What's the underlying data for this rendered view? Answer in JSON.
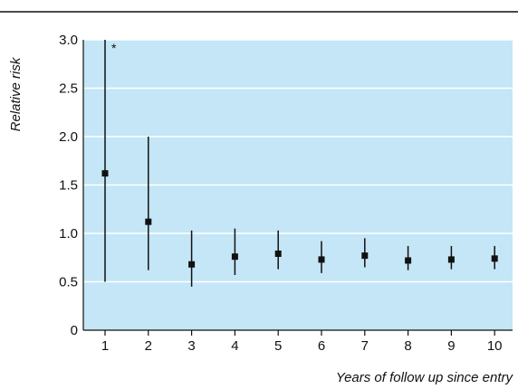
{
  "chart_data": {
    "type": "scatter",
    "xlabel": "Years of follow up since entry",
    "ylabel": "Relative risk",
    "ylim": [
      0,
      3.0
    ],
    "y_ticks": [
      "0",
      "0.5",
      "1.0",
      "1.5",
      "2.0",
      "2.5",
      "3.0"
    ],
    "categories": [
      "1",
      "2",
      "3",
      "4",
      "5",
      "6",
      "7",
      "8",
      "9",
      "10"
    ],
    "values": [
      1.62,
      1.12,
      0.68,
      0.76,
      0.79,
      0.73,
      0.77,
      0.72,
      0.73,
      0.74
    ],
    "ci_lower": [
      0.5,
      0.62,
      0.45,
      0.57,
      0.63,
      0.59,
      0.65,
      0.62,
      0.63,
      0.63
    ],
    "ci_upper": [
      3.0,
      2.0,
      1.03,
      1.05,
      1.03,
      0.92,
      0.95,
      0.87,
      0.87,
      0.87
    ],
    "annotation": "*",
    "grid": true,
    "colors": {
      "plot_background": "#c4e6f6",
      "marker": "#111111",
      "grid": "#ffffff"
    }
  }
}
